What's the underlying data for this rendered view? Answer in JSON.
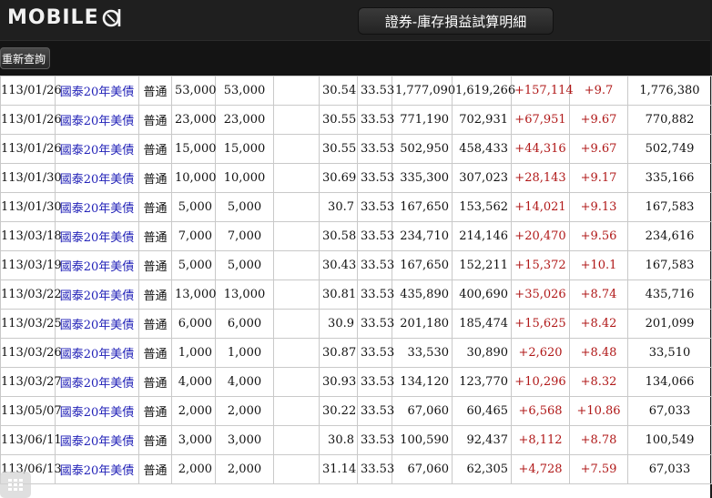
{
  "app": {
    "logo_text": "MOBILE",
    "title": "證券-庫存損益試算明細"
  },
  "toolbar": {
    "requery_label": "重新查詢"
  },
  "rows": [
    [
      "113/01/26",
      "國泰20年美債",
      "普通",
      "53,000",
      "53,000",
      "",
      "30.54",
      "33.53",
      "1,777,090",
      "1,619,266",
      "+157,114",
      "+9.7",
      "1,776,380"
    ],
    [
      "113/01/26",
      "國泰20年美債",
      "普通",
      "23,000",
      "23,000",
      "",
      "30.55",
      "33.53",
      "771,190",
      "702,931",
      "+67,951",
      "+9.67",
      "770,882"
    ],
    [
      "113/01/26",
      "國泰20年美債",
      "普通",
      "15,000",
      "15,000",
      "",
      "30.55",
      "33.53",
      "502,950",
      "458,433",
      "+44,316",
      "+9.67",
      "502,749"
    ],
    [
      "113/01/30",
      "國泰20年美債",
      "普通",
      "10,000",
      "10,000",
      "",
      "30.69",
      "33.53",
      "335,300",
      "307,023",
      "+28,143",
      "+9.17",
      "335,166"
    ],
    [
      "113/01/30",
      "國泰20年美債",
      "普通",
      "5,000",
      "5,000",
      "",
      "30.7",
      "33.53",
      "167,650",
      "153,562",
      "+14,021",
      "+9.13",
      "167,583"
    ],
    [
      "113/03/18",
      "國泰20年美債",
      "普通",
      "7,000",
      "7,000",
      "",
      "30.58",
      "33.53",
      "234,710",
      "214,146",
      "+20,470",
      "+9.56",
      "234,616"
    ],
    [
      "113/03/19",
      "國泰20年美債",
      "普通",
      "5,000",
      "5,000",
      "",
      "30.43",
      "33.53",
      "167,650",
      "152,211",
      "+15,372",
      "+10.1",
      "167,583"
    ],
    [
      "113/03/22",
      "國泰20年美債",
      "普通",
      "13,000",
      "13,000",
      "",
      "30.81",
      "33.53",
      "435,890",
      "400,690",
      "+35,026",
      "+8.74",
      "435,716"
    ],
    [
      "113/03/25",
      "國泰20年美債",
      "普通",
      "6,000",
      "6,000",
      "",
      "30.9",
      "33.53",
      "201,180",
      "185,474",
      "+15,625",
      "+8.42",
      "201,099"
    ],
    [
      "113/03/26",
      "國泰20年美債",
      "普通",
      "1,000",
      "1,000",
      "",
      "30.87",
      "33.53",
      "33,530",
      "30,890",
      "+2,620",
      "+8.48",
      "33,510"
    ],
    [
      "113/03/27",
      "國泰20年美債",
      "普通",
      "4,000",
      "4,000",
      "",
      "30.93",
      "33.53",
      "134,120",
      "123,770",
      "+10,296",
      "+8.32",
      "134,066"
    ],
    [
      "113/05/07",
      "國泰20年美債",
      "普通",
      "2,000",
      "2,000",
      "",
      "30.22",
      "33.53",
      "67,060",
      "60,465",
      "+6,568",
      "+10.86",
      "67,033"
    ],
    [
      "113/06/11",
      "國泰20年美債",
      "普通",
      "3,000",
      "3,000",
      "",
      "30.8",
      "33.53",
      "100,590",
      "92,437",
      "+8,112",
      "+8.78",
      "100,549"
    ],
    [
      "113/06/13",
      "國泰20年美債",
      "普通",
      "2,000",
      "2,000",
      "",
      "31.14",
      "33.53",
      "67,060",
      "62,305",
      "+4,728",
      "+7.59",
      "67,033"
    ]
  ],
  "colors": {
    "link": "#2323b8",
    "positive": "#b01818",
    "header_bg": "#1f1f1f"
  },
  "icons": {
    "logo_tail": "mobile01-swirl-icon",
    "keypad": "grid-keypad-icon"
  }
}
